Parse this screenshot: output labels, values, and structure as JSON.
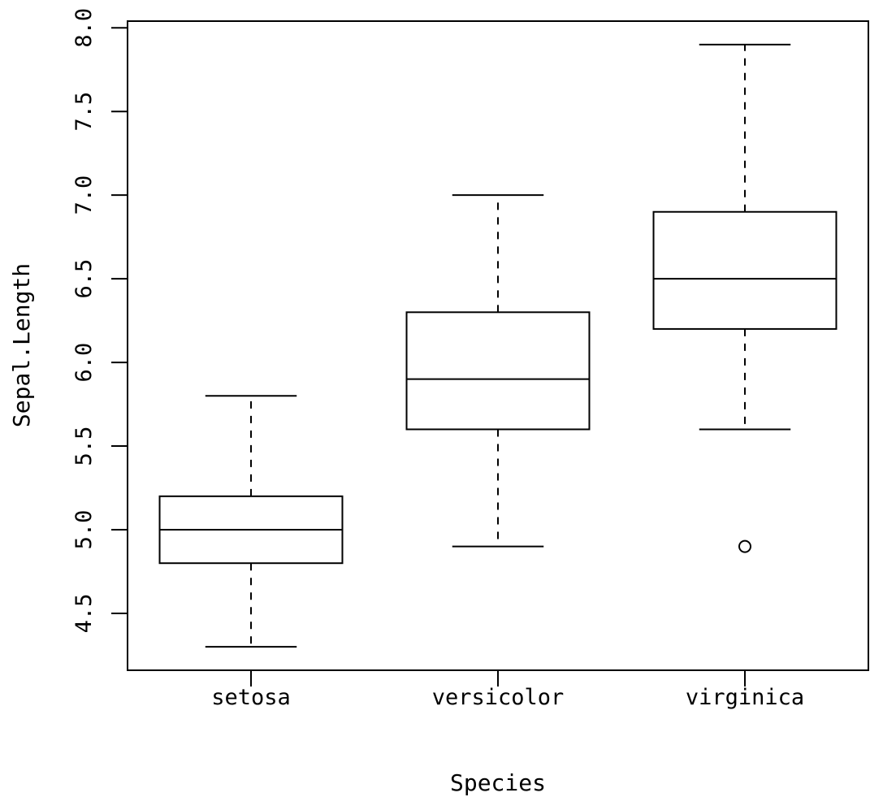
{
  "chart_data": {
    "type": "box",
    "title": "",
    "xlabel": "Species",
    "ylabel": "Sepal.Length",
    "ylim": [
      4.16,
      8.04
    ],
    "yticks": [
      "4.5",
      "5.0",
      "5.5",
      "6.0",
      "6.5",
      "7.0",
      "7.5",
      "8.0"
    ],
    "categories": [
      "setosa",
      "versicolor",
      "virginica"
    ],
    "boxes": [
      {
        "category": "setosa",
        "whisker_low": 4.3,
        "q1": 4.8,
        "median": 5.0,
        "q3": 5.2,
        "whisker_high": 5.8,
        "outliers": []
      },
      {
        "category": "versicolor",
        "whisker_low": 4.9,
        "q1": 5.6,
        "median": 5.9,
        "q3": 6.3,
        "whisker_high": 7.0,
        "outliers": []
      },
      {
        "category": "virginica",
        "whisker_low": 5.6,
        "q1": 6.2,
        "median": 6.5,
        "q3": 6.9,
        "whisker_high": 7.9,
        "outliers": [
          4.9
        ]
      }
    ],
    "grid": false,
    "legend": "none",
    "colors": {
      "stroke": "#000000",
      "fill": "#ffffff"
    }
  }
}
